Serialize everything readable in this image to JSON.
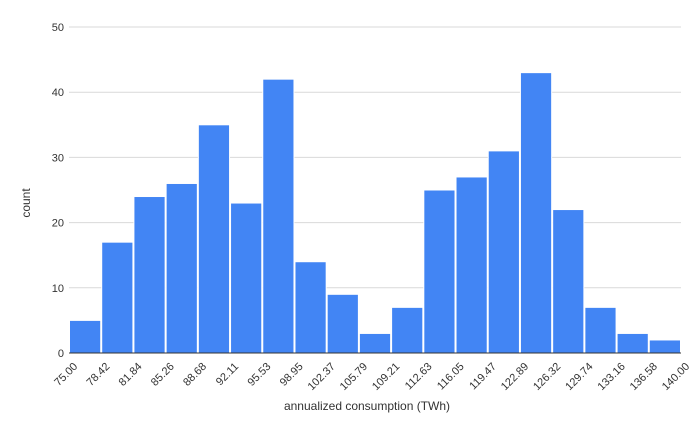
{
  "chart_data": {
    "type": "bar",
    "title": "",
    "xlabel": "annualized consumption (TWh)",
    "ylabel": "count",
    "ylim": [
      0,
      50
    ],
    "yticks": [
      "0",
      "10",
      "20",
      "30",
      "40",
      "50"
    ],
    "bin_edges": [
      "75.00",
      "78.42",
      "81.84",
      "85.26",
      "88.68",
      "92.11",
      "95.53",
      "98.95",
      "102.37",
      "105.79",
      "109.21",
      "112.63",
      "116.05",
      "119.47",
      "122.89",
      "126.32",
      "129.74",
      "133.16",
      "136.58",
      "140.00"
    ],
    "values": [
      5,
      17,
      24,
      26,
      35,
      23,
      42,
      14,
      9,
      3,
      7,
      25,
      27,
      31,
      43,
      22,
      7,
      3,
      2
    ],
    "grid": true,
    "legend": "none",
    "bar_color": "#4285f4"
  }
}
